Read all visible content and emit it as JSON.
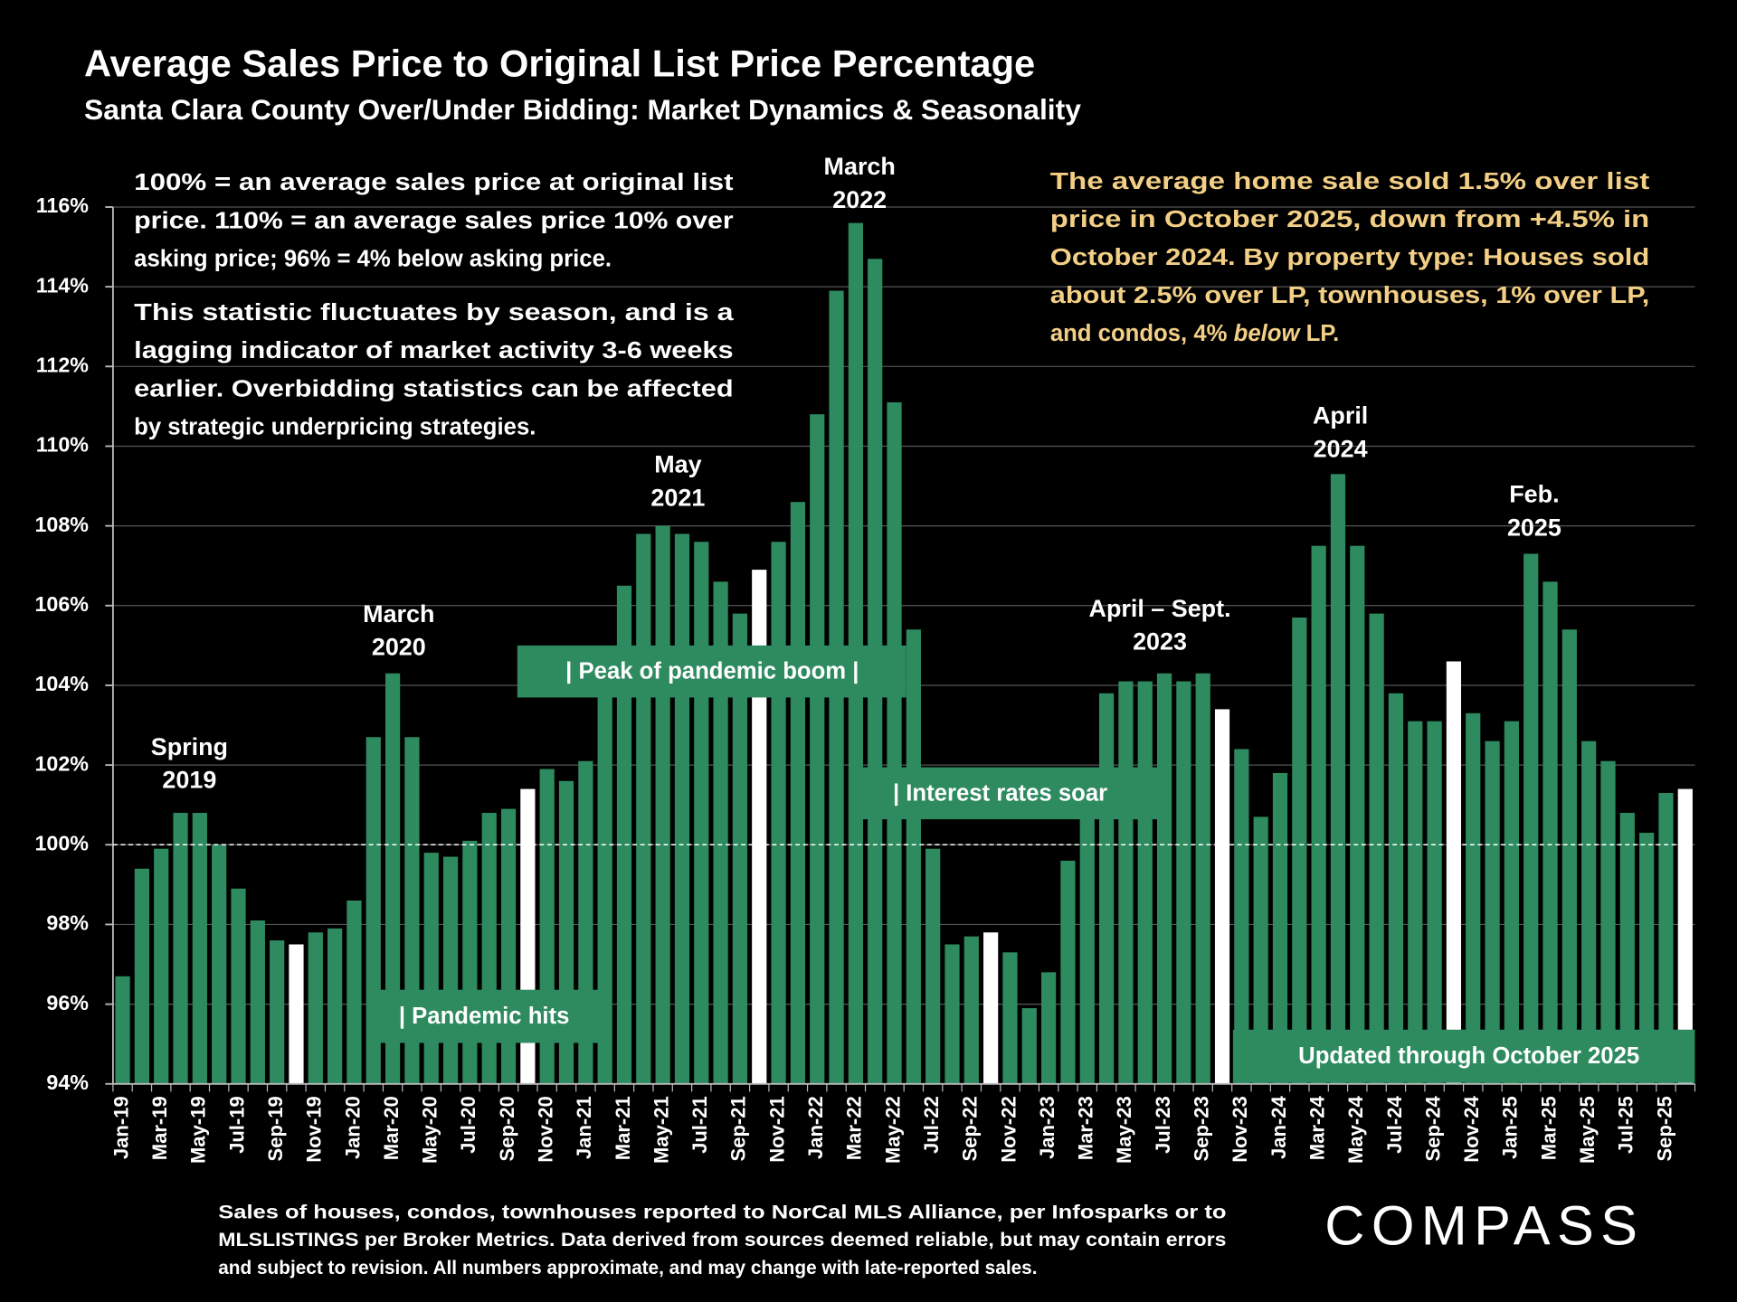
{
  "chart_data": {
    "type": "bar",
    "title": "Average Sales Price to Original List Price Percentage",
    "subtitle": "Santa Clara County Over/Under Bidding: Market Dynamics & Seasonality",
    "categories": [
      "Jan-19",
      null,
      "Mar-19",
      null,
      "May-19",
      null,
      "Jul-19",
      null,
      "Sep-19",
      null,
      "Nov-19",
      null,
      "Jan-20",
      null,
      "Mar-20",
      null,
      "May-20",
      null,
      "Jul-20",
      null,
      "Sep-20",
      null,
      "Nov-20",
      null,
      "Jan-21",
      null,
      "Mar-21",
      null,
      "May-21",
      null,
      "Jul-21",
      null,
      "Sep-21",
      null,
      "Nov-21",
      null,
      "Jan-22",
      null,
      "Mar-22",
      null,
      "May-22",
      null,
      "Jul-22",
      null,
      "Sep-22",
      null,
      "Nov-22",
      null,
      "Jan-23",
      null,
      "Mar-23",
      null,
      "May-23",
      null,
      "Jul-23",
      null,
      "Sep-23",
      null,
      "Nov-23",
      null,
      "Jan-24",
      null,
      "Mar-24",
      null,
      "May-24",
      null,
      "Jul-24",
      null,
      "Sep-24",
      null,
      "Nov-24",
      null,
      "Jan-25",
      null,
      "Mar-25",
      null,
      "May-25",
      null,
      "Jul-25",
      null,
      "Sep-25",
      null
    ],
    "series": [
      {
        "values": [
          96.7,
          99.4,
          99.9,
          100.8,
          100.8,
          100.0,
          98.9,
          98.1,
          97.6,
          97.5,
          97.8,
          97.9,
          98.6,
          102.7,
          104.3,
          102.7,
          99.8,
          99.7,
          100.1,
          100.8,
          100.9,
          101.4,
          101.9,
          101.6,
          102.1,
          104.0,
          106.5,
          107.8,
          108.0,
          107.8,
          107.6,
          106.6,
          105.8,
          106.9,
          107.6,
          108.6,
          110.8,
          113.9,
          115.6,
          114.7,
          111.1,
          105.4,
          99.9,
          97.5,
          97.7,
          97.8,
          97.3,
          95.9,
          96.8,
          99.6,
          100.8,
          103.8,
          104.1,
          104.1,
          104.3,
          104.1,
          104.3,
          103.4,
          102.4,
          100.7,
          101.8,
          105.7,
          107.5,
          109.3,
          107.5,
          105.8,
          103.8,
          103.1,
          103.1,
          104.6,
          103.3,
          102.6,
          103.1,
          107.3,
          106.6,
          105.4,
          102.6,
          102.1,
          100.8,
          100.3,
          101.3,
          101.4
        ],
        "colors": [
          "#2e8b5f",
          "#2e8b5f",
          "#2e8b5f",
          "#2e8b5f",
          "#2e8b5f",
          "#2e8b5f",
          "#2e8b5f",
          "#2e8b5f",
          "#2e8b5f",
          "#ffffff",
          "#2e8b5f",
          "#2e8b5f",
          "#2e8b5f",
          "#2e8b5f",
          "#2e8b5f",
          "#2e8b5f",
          "#2e8b5f",
          "#2e8b5f",
          "#2e8b5f",
          "#2e8b5f",
          "#2e8b5f",
          "#ffffff",
          "#2e8b5f",
          "#2e8b5f",
          "#2e8b5f",
          "#2e8b5f",
          "#2e8b5f",
          "#2e8b5f",
          "#2e8b5f",
          "#2e8b5f",
          "#2e8b5f",
          "#2e8b5f",
          "#2e8b5f",
          "#ffffff",
          "#2e8b5f",
          "#2e8b5f",
          "#2e8b5f",
          "#2e8b5f",
          "#2e8b5f",
          "#2e8b5f",
          "#2e8b5f",
          "#2e8b5f",
          "#2e8b5f",
          "#2e8b5f",
          "#2e8b5f",
          "#ffffff",
          "#2e8b5f",
          "#2e8b5f",
          "#2e8b5f",
          "#2e8b5f",
          "#2e8b5f",
          "#2e8b5f",
          "#2e8b5f",
          "#2e8b5f",
          "#2e8b5f",
          "#2e8b5f",
          "#2e8b5f",
          "#ffffff",
          "#2e8b5f",
          "#2e8b5f",
          "#2e8b5f",
          "#2e8b5f",
          "#2e8b5f",
          "#2e8b5f",
          "#2e8b5f",
          "#2e8b5f",
          "#2e8b5f",
          "#2e8b5f",
          "#2e8b5f",
          "#ffffff",
          "#2e8b5f",
          "#2e8b5f",
          "#2e8b5f",
          "#2e8b5f",
          "#2e8b5f",
          "#2e8b5f",
          "#2e8b5f",
          "#2e8b5f",
          "#2e8b5f",
          "#2e8b5f",
          "#2e8b5f",
          "#ffffff"
        ]
      }
    ],
    "ylim": [
      94,
      116
    ],
    "yticks": [
      {
        "value": 94,
        "label": "94%"
      },
      {
        "value": 96,
        "label": "96%"
      },
      {
        "value": 98,
        "label": "98%"
      },
      {
        "value": 100,
        "label": "100%"
      },
      {
        "value": 102,
        "label": "102%"
      },
      {
        "value": 104,
        "label": "104%"
      },
      {
        "value": 106,
        "label": "106%"
      },
      {
        "value": 108,
        "label": "108%"
      },
      {
        "value": 110,
        "label": "110%"
      },
      {
        "value": 112,
        "label": "112%"
      },
      {
        "value": 114,
        "label": "114%"
      },
      {
        "value": 116,
        "label": "116%"
      }
    ],
    "grid": true,
    "reference_line": 100,
    "peak_labels": [
      [
        "Spring",
        "2019"
      ],
      [
        "March",
        "2020"
      ],
      [
        "May",
        "2021"
      ],
      [
        "March",
        "2022"
      ],
      [
        "April – Sept.",
        "2023"
      ],
      [
        "April",
        "2024"
      ],
      [
        "Feb.",
        "2025"
      ]
    ],
    "callouts": [
      "| Pandemic hits",
      "| Peak of pandemic boom  |",
      "| Interest rates soar",
      "Updated through October 2025"
    ],
    "left_note": [
      [
        "100% = an average sales price at original list",
        "price. 110% = an average sales price 10% over",
        "asking price; 96% = 4% below asking price."
      ],
      [
        "This statistic fluctuates by season, and is a",
        "lagging indicator of market activity 3-6 weeks",
        "earlier. Overbidding statistics can be affected",
        "by strategic underpricing strategies."
      ]
    ],
    "right_note": {
      "lines": [
        "The average home sale sold 1.5% over list",
        "price in October 2025, down from +4.5% in",
        "October 2024. By property type:  Houses sold",
        "about 2.5% over LP, townhouses, 1% over LP,"
      ],
      "last_line": [
        "and condos, 4% ",
        "below",
        " LP."
      ],
      "color": "#f3cf86"
    },
    "footnote": [
      "Sales of houses, condos, townhouses reported to NorCal MLS Alliance, per Infosparks or to",
      "MLSLISTINGS per Broker Metrics. Data derived from sources deemed reliable, but may contain errors",
      "and subject to revision. All numbers approximate, and may change with late-reported sales."
    ],
    "logo": "COMPASS"
  }
}
